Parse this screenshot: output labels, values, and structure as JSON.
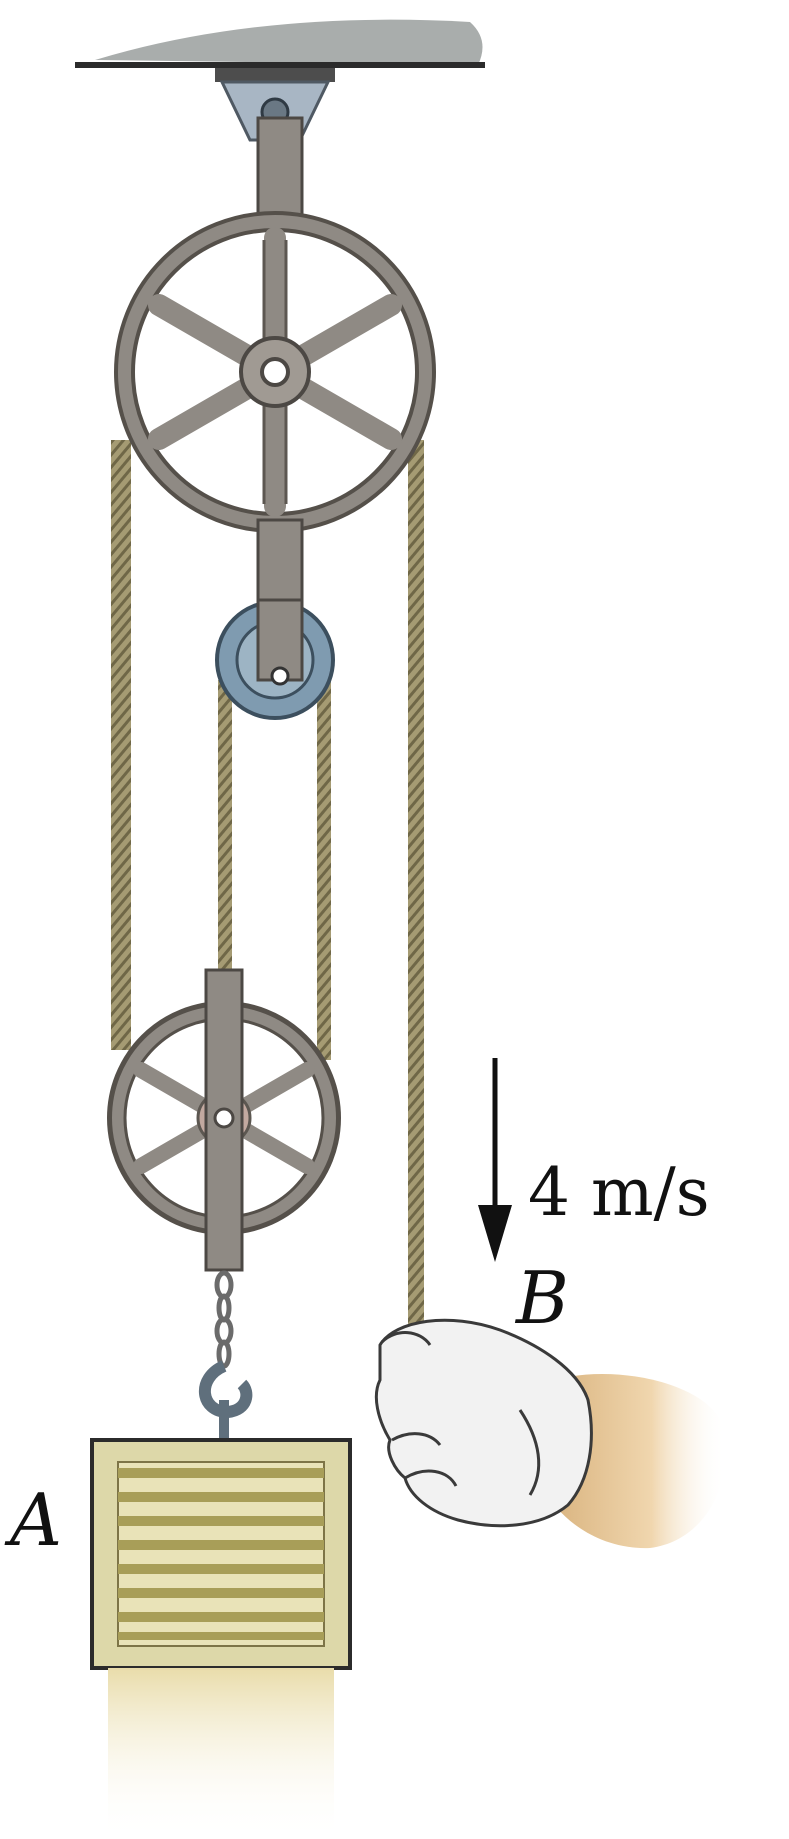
{
  "diagram": {
    "labels": {
      "speed": "4 m/s",
      "point_b": "B",
      "block_a": "A"
    },
    "colors": {
      "ceiling": "#a9adac",
      "pulley_metal": "#8f8a84",
      "pulley_dark": "#5c5751",
      "small_pulley": "#7f9bb0",
      "rope": "#9a916c",
      "crate_frame": "#d9d6ad",
      "crate_slats": "#a89e58",
      "glove": "#f2f2f2",
      "arm": "#e7c79b",
      "arrow": "#111111"
    },
    "icons": {
      "arrow": "down-arrow-icon",
      "hand": "gloved-hand-icon"
    }
  }
}
